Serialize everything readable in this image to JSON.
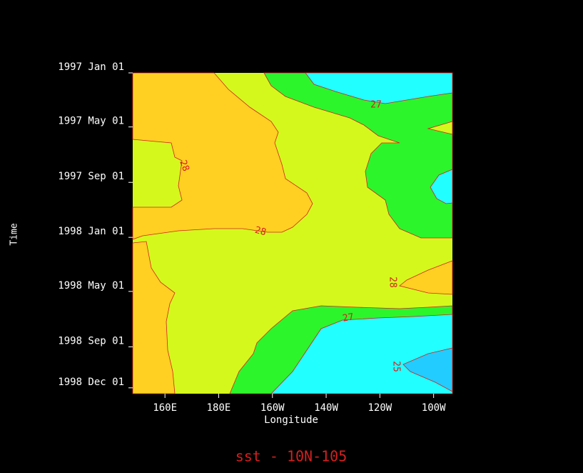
{
  "chart_data": {
    "type": "contour",
    "title": "sst - 10N-105",
    "x_label": "Longitude",
    "y_label": "Time",
    "xlim": [
      148,
      267
    ],
    "xticks": [
      {
        "value": 160,
        "label": "160E"
      },
      {
        "value": 180,
        "label": "180E"
      },
      {
        "value": 200,
        "label": "160W"
      },
      {
        "value": 220,
        "label": "140W"
      },
      {
        "value": 240,
        "label": "120W"
      },
      {
        "value": 260,
        "label": "100W"
      }
    ],
    "ylim": [
      "1997-01-01",
      "1998-12-14"
    ],
    "yticks": [
      {
        "value": "1997-01-01",
        "label": "1997 Jan 01"
      },
      {
        "value": "1997-05-01",
        "label": "1997 May 01"
      },
      {
        "value": "1997-09-01",
        "label": "1997 Sep 01"
      },
      {
        "value": "1998-01-01",
        "label": "1998 Jan 01"
      },
      {
        "value": "1998-05-01",
        "label": "1998 May 01"
      },
      {
        "value": "1998-09-01",
        "label": "1998 Sep 01"
      },
      {
        "value": "1998-12-01",
        "label": "1998 Dec 01"
      }
    ],
    "levels": [
      25,
      26,
      27,
      28
    ],
    "colors": [
      "#22ccff",
      "#22ffff",
      "#2cf52c",
      "#d4f81c",
      "#ffd022"
    ],
    "line_color": "#d42020",
    "contour_labels": [
      27,
      28,
      28,
      28,
      27,
      25
    ]
  }
}
